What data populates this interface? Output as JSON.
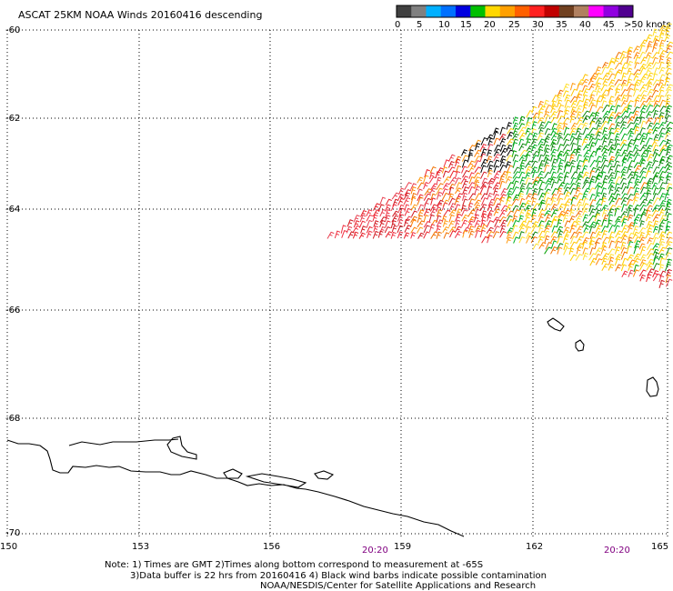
{
  "title": "ASCAT 25KM NOAA Winds 20160416 descending",
  "legend": {
    "labels": [
      "0",
      "5",
      "10",
      "15",
      "20",
      "25",
      "30",
      "35",
      "40",
      "45",
      ">50 knots"
    ],
    "colors": [
      "#404040",
      "#808080",
      "#00b0ff",
      "#0070ff",
      "#0000e0",
      "#00c000",
      "#ffd800",
      "#ffa000",
      "#ff6000",
      "#ff2020",
      "#c00000",
      "#704020",
      "#b08060",
      "#ff00ff",
      "#9000e0",
      "#500090"
    ]
  },
  "axes": {
    "lat_labels": [
      "-60",
      "-62",
      "-64",
      "-66",
      "-68",
      "-70"
    ],
    "lon_labels": [
      "150",
      "153",
      "156",
      "159",
      "162",
      "165"
    ]
  },
  "times": [
    "20:20",
    "20:20"
  ],
  "notes": [
    "Note: 1) Times are GMT 2)Times along bottom correspond to measurement at -65S",
    "3)Data buffer is 22 hrs from 20160416 4) Black wind barbs indicate possible contamination",
    "NOAA/NESDIS/Center for Satellite Applications and Research"
  ]
}
